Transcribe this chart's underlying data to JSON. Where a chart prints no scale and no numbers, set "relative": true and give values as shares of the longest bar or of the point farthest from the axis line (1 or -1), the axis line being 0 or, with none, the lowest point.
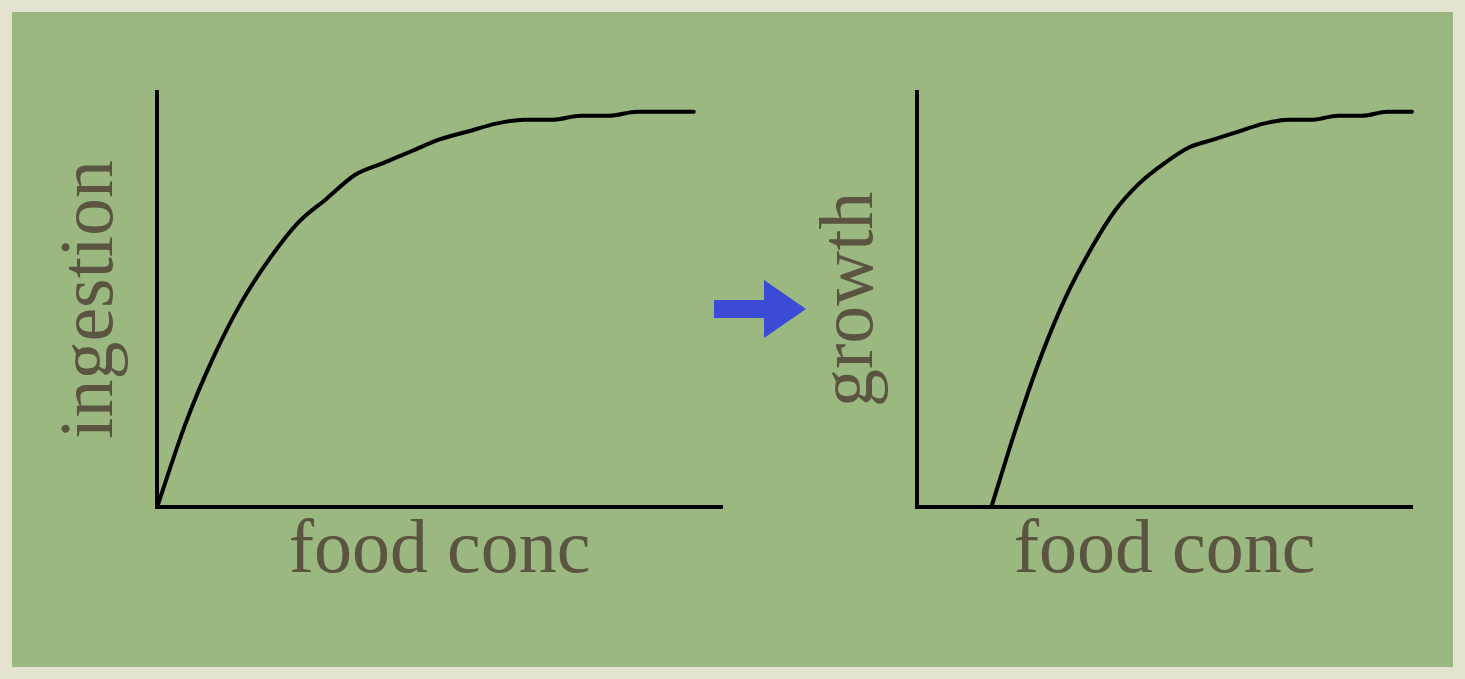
{
  "chart_data": [
    {
      "type": "line",
      "xlabel": "food conc",
      "ylabel": "ingestion",
      "relative": true,
      "tick_labels": false,
      "categories": [
        null,
        null,
        null,
        null,
        null,
        null,
        null,
        null,
        null,
        null,
        null,
        null,
        null,
        null,
        null,
        null,
        null,
        null,
        null,
        null,
        null
      ],
      "series": [
        {
          "color": "#000000",
          "values": [
            0,
            0.21,
            0.38,
            0.52,
            0.63,
            0.72,
            0.78,
            0.84,
            0.87,
            0.9,
            0.93,
            0.95,
            0.97,
            0.98,
            0.98,
            0.99,
            0.99,
            1,
            1,
            1,
            null
          ]
        }
      ]
    },
    {
      "type": "line",
      "xlabel": "food conc",
      "ylabel": "growth",
      "relative": true,
      "tick_labels": false,
      "categories": [
        null,
        null,
        null,
        null,
        null,
        null,
        null,
        null,
        null,
        null,
        null,
        null,
        null,
        null,
        null,
        null,
        null,
        null,
        null,
        null,
        null
      ],
      "series": [
        {
          "color": "#000000",
          "values": [
            null,
            null,
            null,
            0,
            0.2,
            0.38,
            0.53,
            0.65,
            0.75,
            0.82,
            0.87,
            0.91,
            0.93,
            0.95,
            0.97,
            0.98,
            0.98,
            0.99,
            0.99,
            1,
            1
          ]
        }
      ]
    }
  ]
}
